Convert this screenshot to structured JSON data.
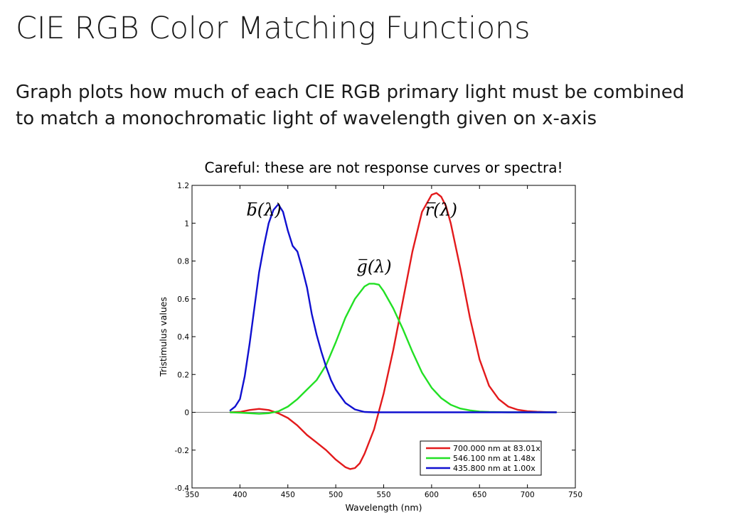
{
  "slide": {
    "title": "CIE RGB Color Matching Functions",
    "body_lines": [
      "Graph plots how much of each CIE RGB primary light must be combined",
      "to match a monochromatic light of wavelength given on x-axis"
    ]
  },
  "chart_data": {
    "type": "line",
    "title": "Careful: these are not response curves or spectra!",
    "xlabel": "Wavelength (nm)",
    "ylabel": "Tristimulus values",
    "xlim": [
      350,
      750
    ],
    "ylim": [
      -0.4,
      1.2
    ],
    "x_ticks": [
      350,
      400,
      450,
      500,
      550,
      600,
      650,
      700,
      750
    ],
    "y_ticks": [
      -0.4,
      -0.2,
      0,
      0.2,
      0.4,
      0.6,
      0.8,
      1,
      1.2
    ],
    "x_tick_labels": [
      "350",
      "400",
      "450",
      "500",
      "550",
      "600",
      "650",
      "700",
      "750"
    ],
    "y_tick_labels": [
      "-0.4",
      "-0.2",
      "0",
      "0.2",
      "0.4",
      "0.6",
      "0.8",
      "1",
      "1.2"
    ],
    "zero_line": true,
    "grid": false,
    "legend_position": "bottom-right",
    "curve_labels": [
      {
        "series": "r",
        "text": "r(λ)",
        "at": [
          610,
          1.04
        ]
      },
      {
        "series": "g",
        "text": "g(λ)",
        "at": [
          540,
          0.74
        ]
      },
      {
        "series": "b",
        "text": "b(λ)",
        "at": [
          425,
          1.04
        ]
      }
    ],
    "series": [
      {
        "key": "r",
        "name": "700.000 nm at 83.01x",
        "color": "#e31a1c",
        "x": [
          390,
          400,
          410,
          420,
          430,
          440,
          450,
          460,
          470,
          480,
          490,
          500,
          510,
          515,
          520,
          525,
          530,
          540,
          550,
          560,
          570,
          580,
          590,
          600,
          605,
          610,
          615,
          620,
          630,
          640,
          650,
          660,
          670,
          680,
          690,
          700,
          710,
          720,
          730
        ],
        "y": [
          0.0,
          0.002,
          0.012,
          0.018,
          0.012,
          -0.005,
          -0.03,
          -0.07,
          -0.12,
          -0.16,
          -0.2,
          -0.25,
          -0.29,
          -0.3,
          -0.295,
          -0.27,
          -0.22,
          -0.09,
          0.1,
          0.33,
          0.59,
          0.85,
          1.06,
          1.15,
          1.16,
          1.14,
          1.09,
          1.0,
          0.76,
          0.5,
          0.28,
          0.14,
          0.07,
          0.03,
          0.013,
          0.006,
          0.003,
          0.001,
          0.0
        ]
      },
      {
        "key": "g",
        "name": "546.100 nm at  1.48x",
        "color": "#22e024",
        "x": [
          390,
          400,
          410,
          420,
          430,
          440,
          450,
          460,
          470,
          480,
          490,
          500,
          510,
          520,
          530,
          535,
          540,
          545,
          550,
          560,
          570,
          580,
          590,
          600,
          610,
          620,
          630,
          640,
          650,
          660,
          670,
          680,
          700,
          730
        ],
        "y": [
          0.0,
          -0.002,
          -0.005,
          -0.008,
          -0.005,
          0.005,
          0.03,
          0.07,
          0.12,
          0.17,
          0.25,
          0.37,
          0.5,
          0.6,
          0.665,
          0.68,
          0.68,
          0.675,
          0.64,
          0.55,
          0.44,
          0.32,
          0.21,
          0.13,
          0.075,
          0.04,
          0.02,
          0.01,
          0.004,
          0.002,
          0.001,
          0.0,
          0.0,
          0.0
        ]
      },
      {
        "key": "b",
        "name": "435.800 nm at  1.00x",
        "color": "#1010d0",
        "x": [
          390,
          395,
          400,
          405,
          410,
          415,
          420,
          425,
          430,
          435,
          440,
          445,
          450,
          455,
          460,
          465,
          470,
          475,
          480,
          485,
          490,
          495,
          500,
          510,
          520,
          530,
          540,
          560,
          600,
          650,
          700,
          730
        ],
        "y": [
          0.01,
          0.03,
          0.07,
          0.19,
          0.36,
          0.55,
          0.74,
          0.88,
          1.0,
          1.07,
          1.1,
          1.06,
          0.96,
          0.88,
          0.85,
          0.76,
          0.66,
          0.52,
          0.41,
          0.32,
          0.24,
          0.17,
          0.12,
          0.05,
          0.015,
          0.002,
          0.0,
          0.0,
          0.0,
          0.0,
          0.0,
          0.0
        ]
      }
    ]
  }
}
